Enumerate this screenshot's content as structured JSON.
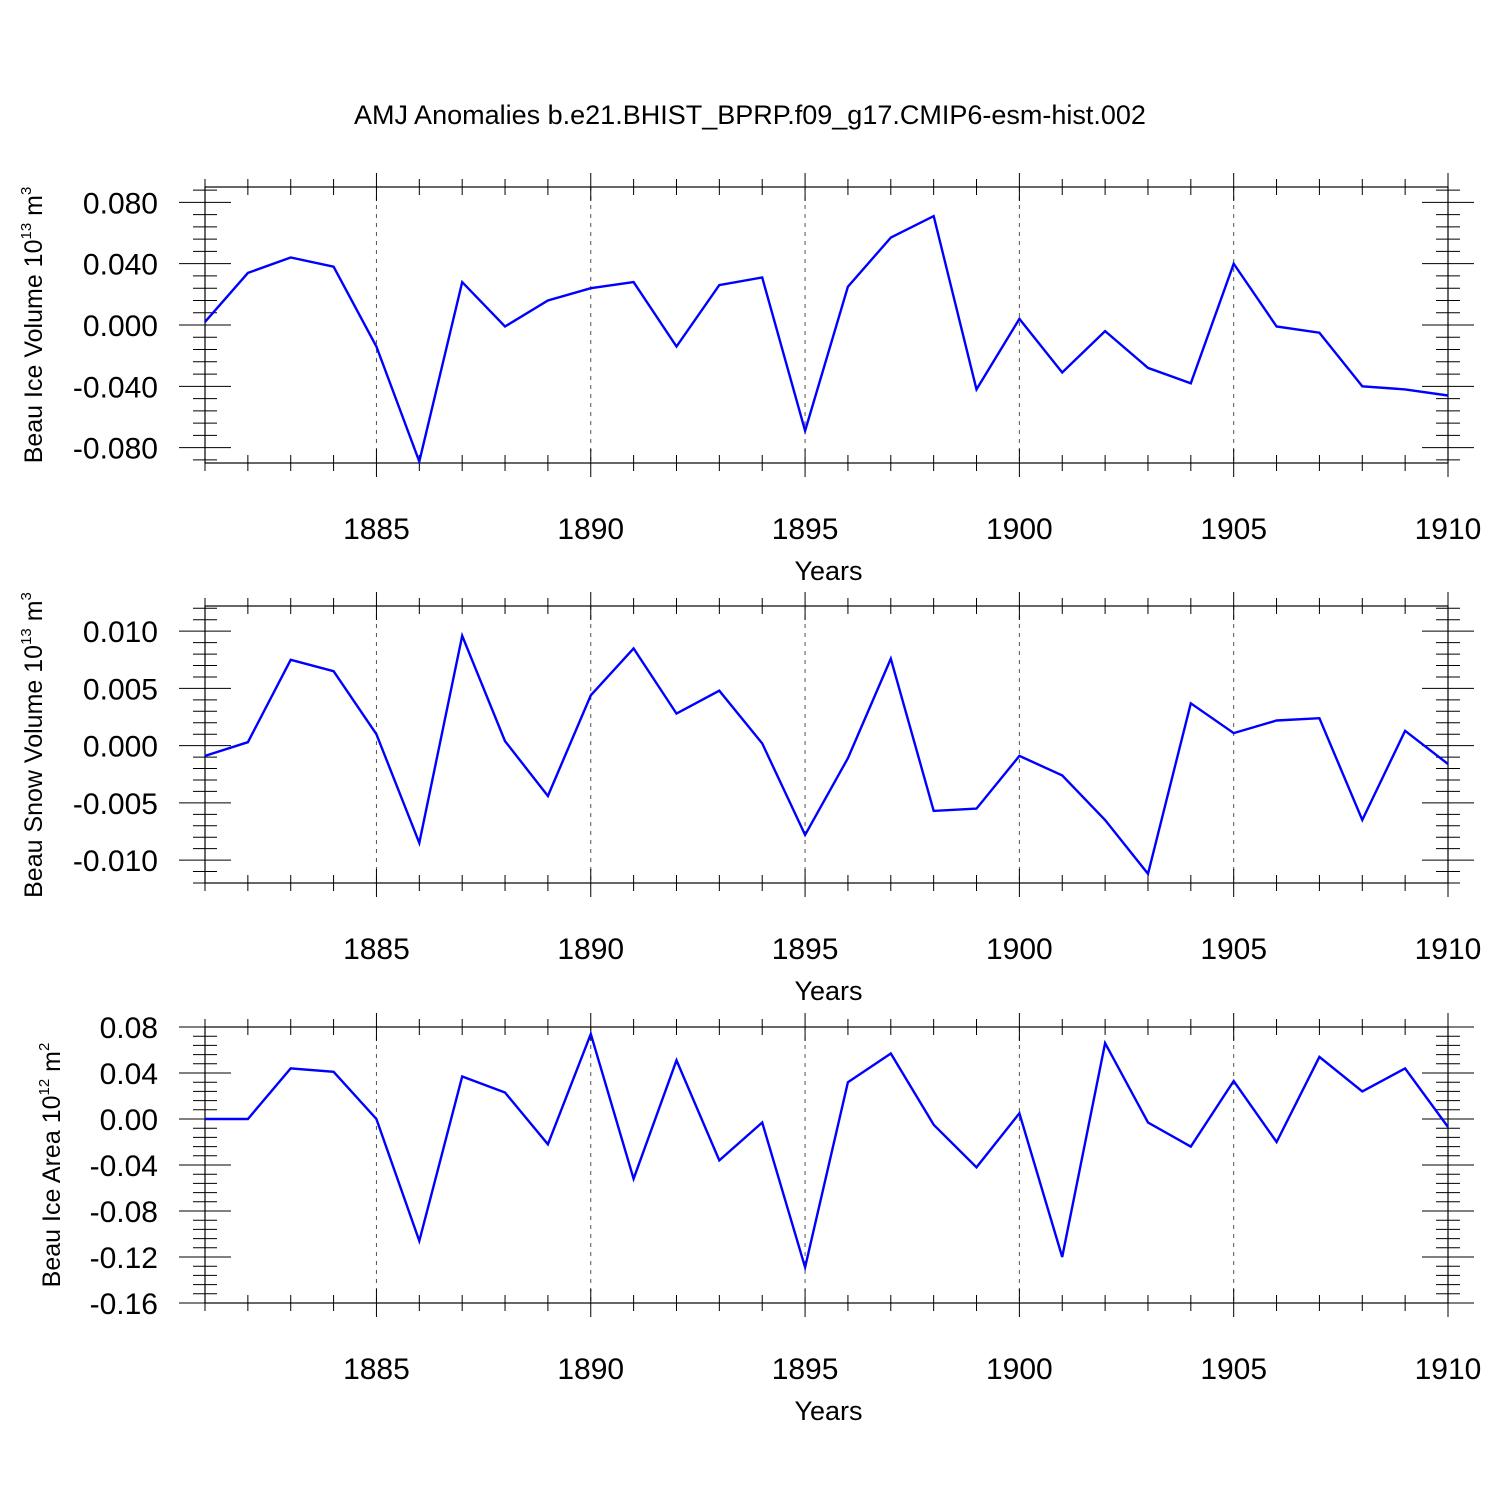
{
  "chart_data": [
    {
      "type": "line",
      "title": "AMJ Anomalies b.e21.BHIST_BPRP.f09_g17.CMIP6-esm-hist.002",
      "ylabel": "Beau Ice Volume 10",
      "ylabel_exp": "13",
      "ylabel_unit": " m",
      "ylabel_unit_exp": "3",
      "xlabel": "Years",
      "xlim": [
        1881,
        1910
      ],
      "ylim": [
        -0.09,
        0.09
      ],
      "yticks": [
        -0.08,
        -0.04,
        0.0,
        0.04,
        0.08
      ],
      "ytick_labels": [
        "-0.080",
        "-0.040",
        "0.000",
        "0.040",
        "0.080"
      ],
      "xticks": [
        1885,
        1890,
        1895,
        1900,
        1905,
        1910
      ],
      "xtick_labels": [
        "1885",
        "1890",
        "1895",
        "1900",
        "1905",
        "1910"
      ],
      "grid": "vertical dashed at major x ticks",
      "series_color": "#0000ff",
      "x": [
        1881,
        1882,
        1883,
        1884,
        1885,
        1886,
        1887,
        1888,
        1889,
        1890,
        1891,
        1892,
        1893,
        1894,
        1895,
        1896,
        1897,
        1898,
        1899,
        1900,
        1901,
        1902,
        1903,
        1904,
        1905,
        1906,
        1907,
        1908,
        1909,
        1910
      ],
      "values": [
        0.002,
        0.034,
        0.044,
        0.038,
        -0.014,
        -0.089,
        0.028,
        -0.001,
        0.016,
        0.024,
        0.028,
        -0.014,
        0.026,
        0.031,
        -0.069,
        0.025,
        0.057,
        0.071,
        -0.042,
        0.004,
        -0.031,
        -0.004,
        -0.028,
        -0.038,
        0.04,
        -0.001,
        -0.005,
        -0.04,
        -0.042,
        -0.046
      ]
    },
    {
      "type": "line",
      "ylabel": "Beau Snow Volume 10",
      "ylabel_exp": "13",
      "ylabel_unit": " m",
      "ylabel_unit_exp": "3",
      "xlabel": "Years",
      "xlim": [
        1881,
        1910
      ],
      "ylim": [
        -0.012,
        0.0122
      ],
      "yticks": [
        -0.01,
        -0.005,
        0.0,
        0.005,
        0.01
      ],
      "ytick_labels": [
        "-0.010",
        "-0.005",
        "0.000",
        "0.005",
        "0.010"
      ],
      "xticks": [
        1885,
        1890,
        1895,
        1900,
        1905,
        1910
      ],
      "xtick_labels": [
        "1885",
        "1890",
        "1895",
        "1900",
        "1905",
        "1910"
      ],
      "grid": "vertical dashed at major x ticks",
      "series_color": "#0000ff",
      "x": [
        1881,
        1882,
        1883,
        1884,
        1885,
        1886,
        1887,
        1888,
        1889,
        1890,
        1891,
        1892,
        1893,
        1894,
        1895,
        1896,
        1897,
        1898,
        1899,
        1900,
        1901,
        1902,
        1903,
        1904,
        1905,
        1906,
        1907,
        1908,
        1909,
        1910
      ],
      "values": [
        -0.0009,
        0.0003,
        0.0075,
        0.0065,
        0.001,
        -0.0085,
        0.0096,
        0.0004,
        -0.0044,
        0.0044,
        0.0085,
        0.0028,
        0.0048,
        0.0002,
        -0.0078,
        -0.0011,
        0.0076,
        -0.0057,
        -0.0055,
        -0.0009,
        -0.0026,
        -0.0065,
        -0.0112,
        0.0037,
        0.0011,
        0.0022,
        0.0024,
        -0.0065,
        0.0013,
        -0.0016
      ]
    },
    {
      "type": "line",
      "ylabel": "Beau Ice Area 10",
      "ylabel_exp": "12",
      "ylabel_unit": " m",
      "ylabel_unit_exp": "2",
      "xlabel": "Years",
      "xlim": [
        1881,
        1910
      ],
      "ylim": [
        -0.16,
        0.08
      ],
      "yticks": [
        -0.16,
        -0.12,
        -0.08,
        -0.04,
        0.0,
        0.04,
        0.08
      ],
      "ytick_labels": [
        "-0.16",
        "-0.12",
        "-0.08",
        "-0.04",
        "0.00",
        "0.04",
        "0.08"
      ],
      "xticks": [
        1885,
        1890,
        1895,
        1900,
        1905,
        1910
      ],
      "xtick_labels": [
        "1885",
        "1890",
        "1895",
        "1900",
        "1905",
        "1910"
      ],
      "grid": "vertical dashed at major x ticks",
      "series_color": "#0000ff",
      "x": [
        1881,
        1882,
        1883,
        1884,
        1885,
        1886,
        1887,
        1888,
        1889,
        1890,
        1891,
        1892,
        1893,
        1894,
        1895,
        1896,
        1897,
        1898,
        1899,
        1900,
        1901,
        1902,
        1903,
        1904,
        1905,
        1906,
        1907,
        1908,
        1909,
        1910
      ],
      "values": [
        0.0,
        0.0,
        0.044,
        0.041,
        0.0,
        -0.106,
        0.037,
        0.023,
        -0.022,
        0.074,
        -0.052,
        0.051,
        -0.036,
        -0.003,
        -0.129,
        0.032,
        0.057,
        -0.005,
        -0.042,
        0.005,
        -0.12,
        0.066,
        -0.003,
        -0.024,
        0.033,
        -0.02,
        0.054,
        0.024,
        0.044,
        -0.007
      ]
    }
  ]
}
